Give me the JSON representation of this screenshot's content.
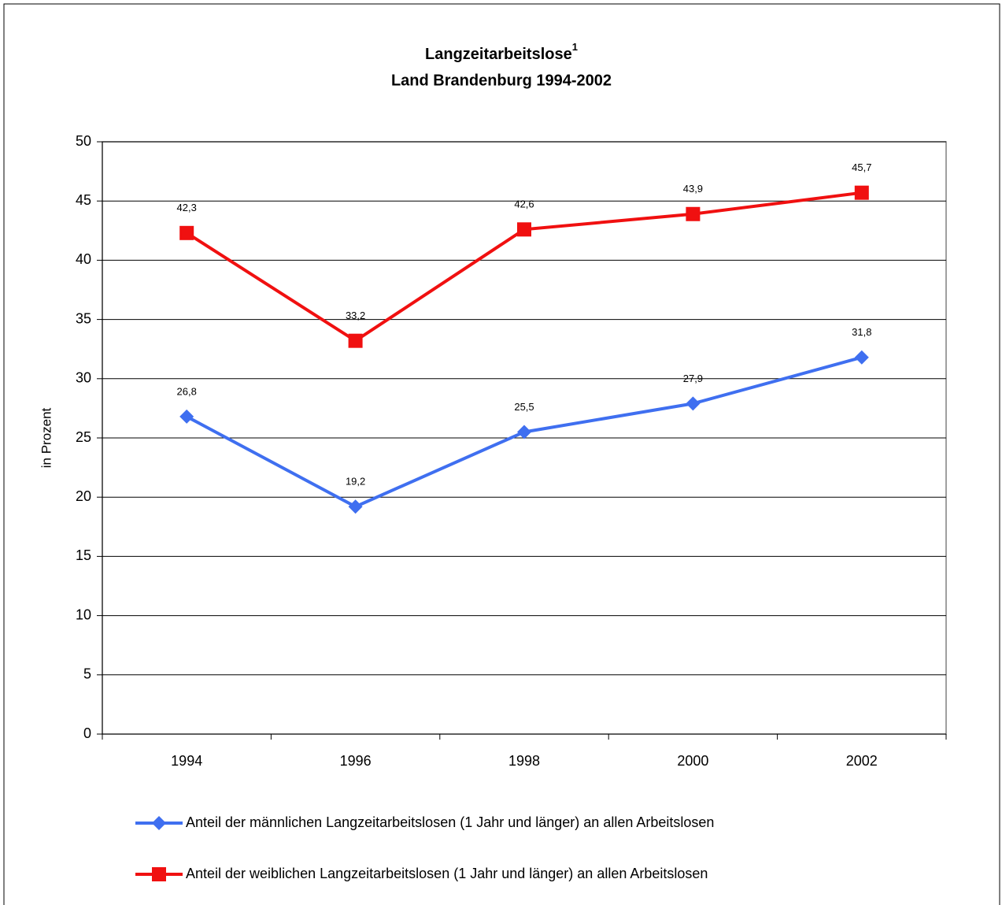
{
  "chart_data": {
    "type": "line",
    "title": "Langzeitarbeitslose",
    "title_superscript": "1",
    "subtitle": "Land Brandenburg 1994-2002",
    "y_label": "in Prozent",
    "categories": [
      "1994",
      "1996",
      "1998",
      "2000",
      "2002"
    ],
    "series": [
      {
        "name": "Anteil der männlichen Langzeitarbeitslosen (1 Jahr und länger) an allen Arbeitslosen",
        "color": "#3f6ff0",
        "marker": "diamond",
        "values": [
          26.8,
          19.2,
          25.5,
          27.9,
          31.8
        ],
        "value_labels": [
          "26,8",
          "19,2",
          "25,5",
          "27,9",
          "31,8"
        ]
      },
      {
        "name": "Anteil der weiblichen Langzeitarbeitslosen (1 Jahr und länger) an allen Arbeitslosen",
        "color": "#f01010",
        "marker": "square",
        "values": [
          42.3,
          33.2,
          42.6,
          43.9,
          45.7
        ],
        "value_labels": [
          "42,3",
          "33,2",
          "42,6",
          "43,9",
          "45,7"
        ]
      }
    ],
    "ylim": [
      0,
      50
    ],
    "yticks": [
      0,
      5,
      10,
      15,
      20,
      25,
      30,
      35,
      40,
      45,
      50
    ],
    "grid": true,
    "legend": "bottom"
  }
}
